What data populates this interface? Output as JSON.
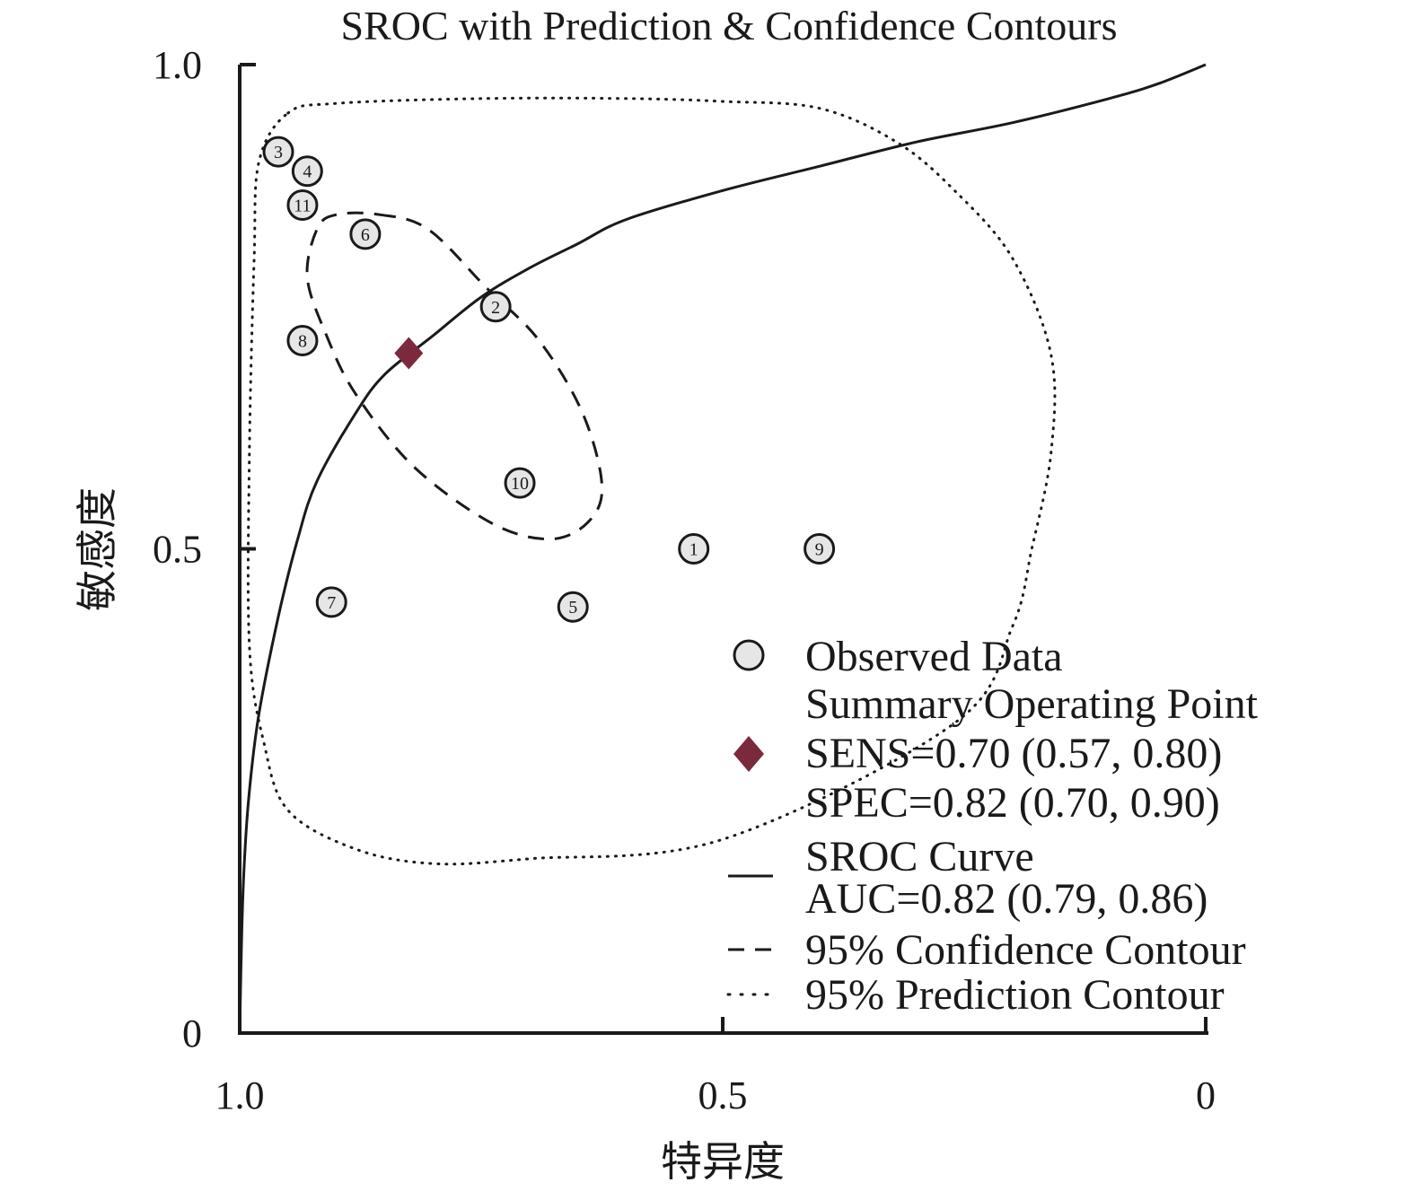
{
  "chart_data": {
    "type": "scatter",
    "title": "SROC with Prediction & Confidence Contours",
    "xlabel": "特异度",
    "ylabel": "敏感度",
    "xlim": [
      1.0,
      0
    ],
    "ylim": [
      0,
      1.0
    ],
    "x_ticks": [
      {
        "value": 1.0,
        "label": "1.0"
      },
      {
        "value": 0.5,
        "label": "0.5"
      },
      {
        "value": 0,
        "label": "0"
      }
    ],
    "y_ticks": [
      {
        "value": 1.0,
        "label": "1.0"
      },
      {
        "value": 0.5,
        "label": "0.5"
      },
      {
        "value": 0,
        "label": "0"
      }
    ],
    "grid": false,
    "legend_position": "bottom-right",
    "colors": {
      "summary_point": "#7a2a3c",
      "observed_fill": "#e6e6e6",
      "line": "#1a1a1a"
    },
    "observed_data": [
      {
        "label": "1",
        "specificity": 0.53,
        "sensitivity": 0.5
      },
      {
        "label": "2",
        "specificity": 0.735,
        "sensitivity": 0.75
      },
      {
        "label": "3",
        "specificity": 0.96,
        "sensitivity": 0.91
      },
      {
        "label": "4",
        "specificity": 0.93,
        "sensitivity": 0.89
      },
      {
        "label": "5",
        "specificity": 0.655,
        "sensitivity": 0.44
      },
      {
        "label": "6",
        "specificity": 0.87,
        "sensitivity": 0.825
      },
      {
        "label": "7",
        "specificity": 0.905,
        "sensitivity": 0.445
      },
      {
        "label": "8",
        "specificity": 0.935,
        "sensitivity": 0.715
      },
      {
        "label": "9",
        "specificity": 0.4,
        "sensitivity": 0.5
      },
      {
        "label": "10",
        "specificity": 0.71,
        "sensitivity": 0.568
      },
      {
        "label": "11",
        "specificity": 0.935,
        "sensitivity": 0.855
      }
    ],
    "summary_point": {
      "specificity": 0.825,
      "sensitivity": 0.702
    },
    "sroc_curve": [
      [
        1.0,
        0.0
      ],
      [
        0.998,
        0.1
      ],
      [
        0.995,
        0.18
      ],
      [
        0.99,
        0.25
      ],
      [
        0.98,
        0.33
      ],
      [
        0.96,
        0.43
      ],
      [
        0.94,
        0.51
      ],
      [
        0.92,
        0.57
      ],
      [
        0.88,
        0.64
      ],
      [
        0.85,
        0.68
      ],
      [
        0.8,
        0.72
      ],
      [
        0.75,
        0.76
      ],
      [
        0.7,
        0.79
      ],
      [
        0.65,
        0.815
      ],
      [
        0.6,
        0.84
      ],
      [
        0.5,
        0.87
      ],
      [
        0.4,
        0.895
      ],
      [
        0.3,
        0.92
      ],
      [
        0.2,
        0.94
      ],
      [
        0.1,
        0.965
      ],
      [
        0.05,
        0.98
      ],
      [
        0.0,
        1.0
      ]
    ],
    "confidence_contour": [
      [
        0.855,
        0.845
      ],
      [
        0.805,
        0.83
      ],
      [
        0.745,
        0.77
      ],
      [
        0.69,
        0.715
      ],
      [
        0.645,
        0.64
      ],
      [
        0.625,
        0.565
      ],
      [
        0.64,
        0.527
      ],
      [
        0.68,
        0.51
      ],
      [
        0.74,
        0.527
      ],
      [
        0.82,
        0.585
      ],
      [
        0.88,
        0.66
      ],
      [
        0.91,
        0.72
      ],
      [
        0.93,
        0.78
      ],
      [
        0.92,
        0.83
      ],
      [
        0.9,
        0.845
      ],
      [
        0.855,
        0.845
      ]
    ],
    "prediction_contour": [
      [
        0.95,
        0.95
      ],
      [
        0.9,
        0.96
      ],
      [
        0.75,
        0.965
      ],
      [
        0.6,
        0.965
      ],
      [
        0.5,
        0.962
      ],
      [
        0.4,
        0.955
      ],
      [
        0.32,
        0.92
      ],
      [
        0.26,
        0.87
      ],
      [
        0.2,
        0.8
      ],
      [
        0.16,
        0.7
      ],
      [
        0.16,
        0.6
      ],
      [
        0.18,
        0.5
      ],
      [
        0.2,
        0.42
      ],
      [
        0.26,
        0.32
      ],
      [
        0.5,
        0.2
      ],
      [
        0.7,
        0.18
      ],
      [
        0.8,
        0.175
      ],
      [
        0.88,
        0.19
      ],
      [
        0.95,
        0.23
      ],
      [
        0.975,
        0.3
      ],
      [
        0.99,
        0.4
      ],
      [
        0.99,
        0.6
      ],
      [
        0.985,
        0.8
      ],
      [
        0.98,
        0.9
      ],
      [
        0.95,
        0.95
      ]
    ],
    "legend": {
      "observed": "Observed Data",
      "summary_line1": "Summary Operating Point",
      "summary_line2": "SENS=0.70 (0.57, 0.80)",
      "summary_line3": "SPEC=0.82 (0.70, 0.90)",
      "sroc_line1": "SROC Curve",
      "sroc_line2": "AUC=0.82 (0.79, 0.86)",
      "confidence": "95% Confidence Contour",
      "prediction": "95% Prediction Contour"
    }
  }
}
